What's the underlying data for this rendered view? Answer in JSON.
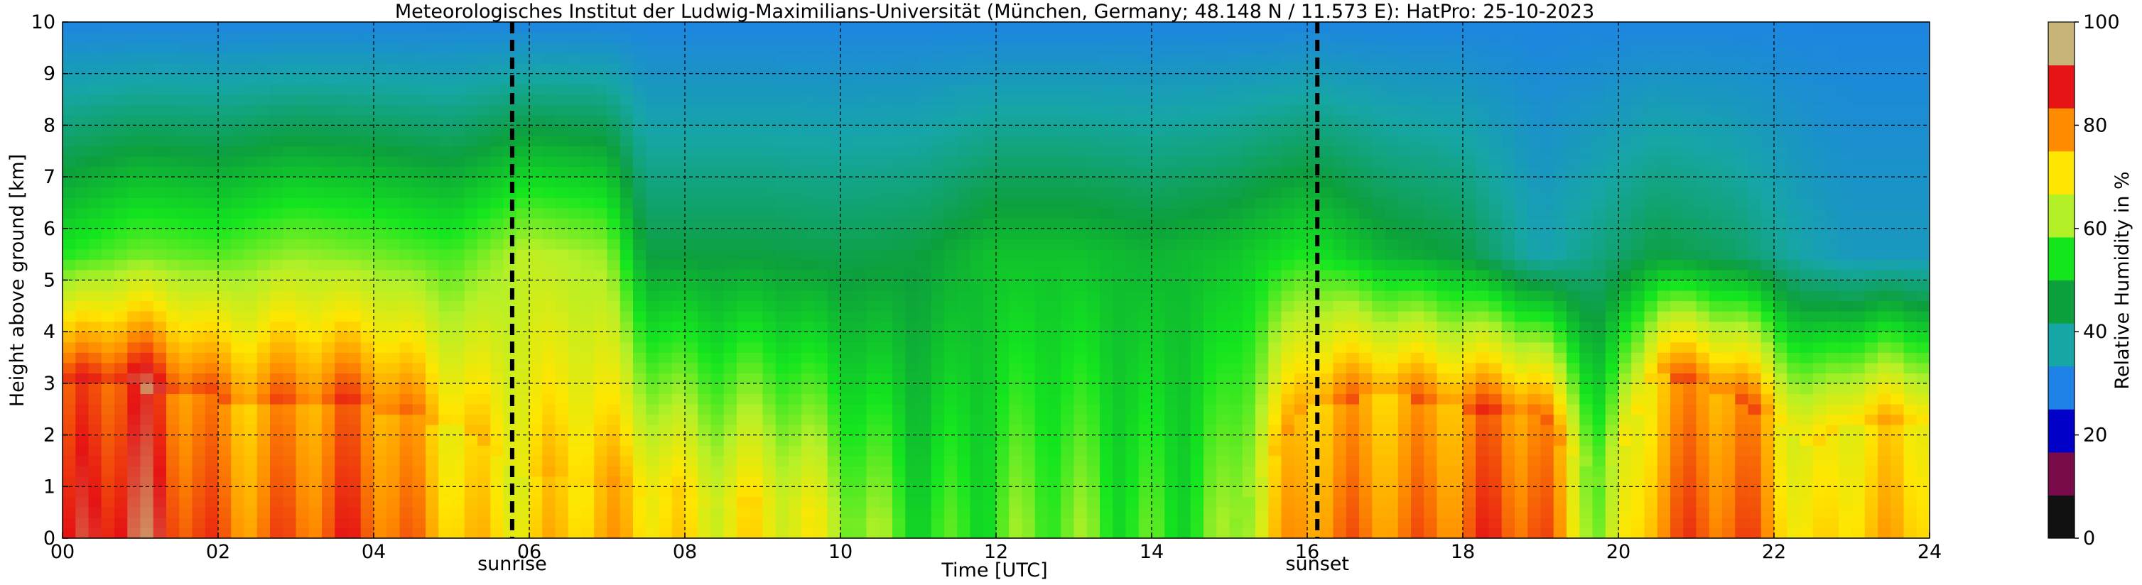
{
  "chart_data": {
    "type": "heatmap",
    "title": "Meteorologisches Institut der Ludwig-Maximilians-Universität (München, Germany; 48.148 N / 11.573 E):    HatPro: 25-10-2023",
    "xlabel": "Time [UTC]",
    "ylabel": "Height above ground [km]",
    "xlim": [
      0,
      24
    ],
    "ylim": [
      0,
      10
    ],
    "x_ticks": [
      0,
      2,
      4,
      6,
      8,
      10,
      12,
      14,
      16,
      18,
      20,
      22,
      24
    ],
    "x_tick_labels": [
      "00",
      "02",
      "04",
      "06",
      "08",
      "10",
      "12",
      "14",
      "16",
      "18",
      "20",
      "22",
      "24"
    ],
    "y_ticks": [
      0,
      1,
      2,
      3,
      4,
      5,
      6,
      7,
      8,
      9,
      10
    ],
    "y_tick_labels": [
      "0",
      "1",
      "2",
      "3",
      "4",
      "5",
      "6",
      "7",
      "8",
      "9",
      "10"
    ],
    "grid": true,
    "colorbar": {
      "label": "Relative Humidity in %",
      "min": 0,
      "max": 100,
      "ticks": [
        0,
        20,
        40,
        60,
        80,
        100
      ],
      "tick_labels": [
        "0",
        "20",
        "40",
        "60",
        "80",
        "100"
      ]
    },
    "events": [
      {
        "label": "sunrise",
        "x": 5.78
      },
      {
        "label": "sunset",
        "x": 16.13
      }
    ],
    "time_profiles": [
      {
        "t": 0.0,
        "surface_rh": 88,
        "moist_top_km": 2.9,
        "mid_rh": 55
      },
      {
        "t": 1.0,
        "surface_rh": 92,
        "moist_top_km": 2.9,
        "mid_rh": 60
      },
      {
        "t": 2.0,
        "surface_rh": 87,
        "moist_top_km": 2.7,
        "mid_rh": 58
      },
      {
        "t": 3.0,
        "surface_rh": 85,
        "moist_top_km": 2.6,
        "mid_rh": 62
      },
      {
        "t": 4.0,
        "surface_rh": 84,
        "moist_top_km": 2.5,
        "mid_rh": 60
      },
      {
        "t": 5.0,
        "surface_rh": 80,
        "moist_top_km": 2.2,
        "mid_rh": 57
      },
      {
        "t": 6.0,
        "surface_rh": 73,
        "moist_top_km": 1.2,
        "mid_rh": 65
      },
      {
        "t": 7.0,
        "surface_rh": 75,
        "moist_top_km": 1.0,
        "mid_rh": 62
      },
      {
        "t": 7.5,
        "surface_rh": 76,
        "moist_top_km": 0.8,
        "mid_rh": 45
      },
      {
        "t": 9.0,
        "surface_rh": 72,
        "moist_top_km": 0.6,
        "mid_rh": 45
      },
      {
        "t": 10.0,
        "surface_rh": 62,
        "moist_top_km": 0.3,
        "mid_rh": 44
      },
      {
        "t": 11.0,
        "surface_rh": 58,
        "moist_top_km": 0.2,
        "mid_rh": 45
      },
      {
        "t": 12.0,
        "surface_rh": 57,
        "moist_top_km": 0.2,
        "mid_rh": 50
      },
      {
        "t": 13.0,
        "surface_rh": 57,
        "moist_top_km": 0.2,
        "mid_rh": 50
      },
      {
        "t": 14.0,
        "surface_rh": 58,
        "moist_top_km": 0.2,
        "mid_rh": 48
      },
      {
        "t": 15.0,
        "surface_rh": 60,
        "moist_top_km": 0.3,
        "mid_rh": 50
      },
      {
        "t": 16.0,
        "surface_rh": 80,
        "moist_top_km": 2.5,
        "mid_rh": 55
      },
      {
        "t": 17.0,
        "surface_rh": 86,
        "moist_top_km": 2.8,
        "mid_rh": 48
      },
      {
        "t": 18.0,
        "surface_rh": 85,
        "moist_top_km": 2.5,
        "mid_rh": 45
      },
      {
        "t": 19.0,
        "surface_rh": 84,
        "moist_top_km": 2.3,
        "mid_rh": 35
      },
      {
        "t": 19.8,
        "surface_rh": 62,
        "moist_top_km": 1.0,
        "mid_rh": 40
      },
      {
        "t": 20.5,
        "surface_rh": 86,
        "moist_top_km": 3.2,
        "mid_rh": 45
      },
      {
        "t": 21.5,
        "surface_rh": 84,
        "moist_top_km": 2.7,
        "mid_rh": 42
      },
      {
        "t": 22.5,
        "surface_rh": 70,
        "moist_top_km": 1.8,
        "mid_rh": 35
      },
      {
        "t": 23.0,
        "surface_rh": 80,
        "moist_top_km": 2.3,
        "mid_rh": 33
      },
      {
        "t": 24.0,
        "surface_rh": 78,
        "moist_top_km": 2.2,
        "mid_rh": 33
      }
    ],
    "colors": {
      "colorbar_stops": [
        "#111111",
        "#7a0b4a",
        "#0000c8",
        "#1e82e6",
        "#16a6a6",
        "#0ca03c",
        "#14e61e",
        "#b4f028",
        "#ffe600",
        "#ff8c00",
        "#e61414",
        "#c8b478"
      ],
      "marker": "#000000",
      "grid": "#000000"
    }
  }
}
